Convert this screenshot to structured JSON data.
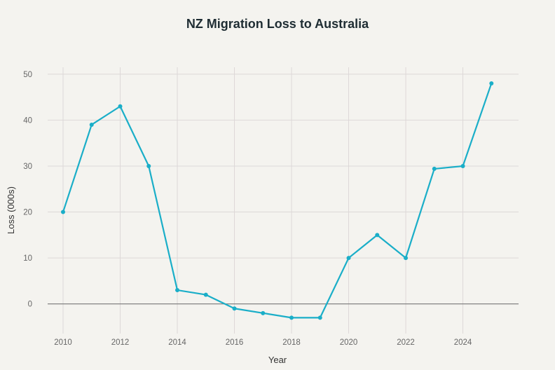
{
  "chart_data": {
    "type": "line",
    "title": "NZ Migration Loss to Australia",
    "xlabel": "Year",
    "ylabel": "Loss (000s)",
    "x": [
      2010,
      2011,
      2012,
      2013,
      2014,
      2015,
      2016,
      2017,
      2018,
      2019,
      2020,
      2021,
      2022,
      2023,
      2024,
      2025
    ],
    "series": [
      {
        "values": [
          20,
          39,
          43,
          30,
          3,
          2,
          -1,
          -2,
          -3,
          -3,
          10,
          15,
          10,
          29.4,
          30,
          48
        ]
      }
    ],
    "xticks": [
      2010,
      2012,
      2014,
      2016,
      2018,
      2020,
      2022,
      2024
    ],
    "yticks": [
      0,
      10,
      20,
      30,
      40,
      50
    ],
    "xlim": [
      2009.46,
      2025.95
    ],
    "ylim": [
      -9.5,
      51.5
    ],
    "grid": true,
    "line_color": "#1aaec8",
    "zero_line_color": "#777777"
  }
}
